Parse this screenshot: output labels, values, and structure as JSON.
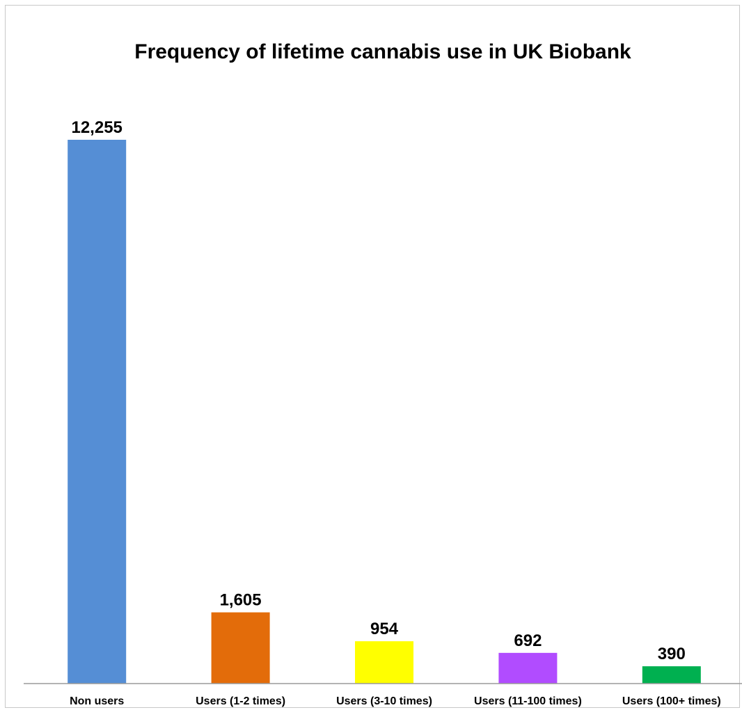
{
  "chart_data": {
    "type": "bar",
    "title": "Frequency of lifetime cannabis use in UK Biobank",
    "categories": [
      "Non users",
      "Users (1-2 times)",
      "Users (3-10 times)",
      "Users (11-100 times)",
      "Users (100+ times)"
    ],
    "values": [
      12255,
      1605,
      954,
      692,
      390
    ],
    "value_labels": [
      "12,255",
      "1,605",
      "954",
      "692",
      "390"
    ],
    "colors": [
      "#558ed5",
      "#e36c0a",
      "#ffff00",
      "#b14cff",
      "#00b050"
    ],
    "xlabel": "",
    "ylabel": "",
    "ylim": [
      0,
      13000
    ],
    "grid": false,
    "legend": "none"
  }
}
